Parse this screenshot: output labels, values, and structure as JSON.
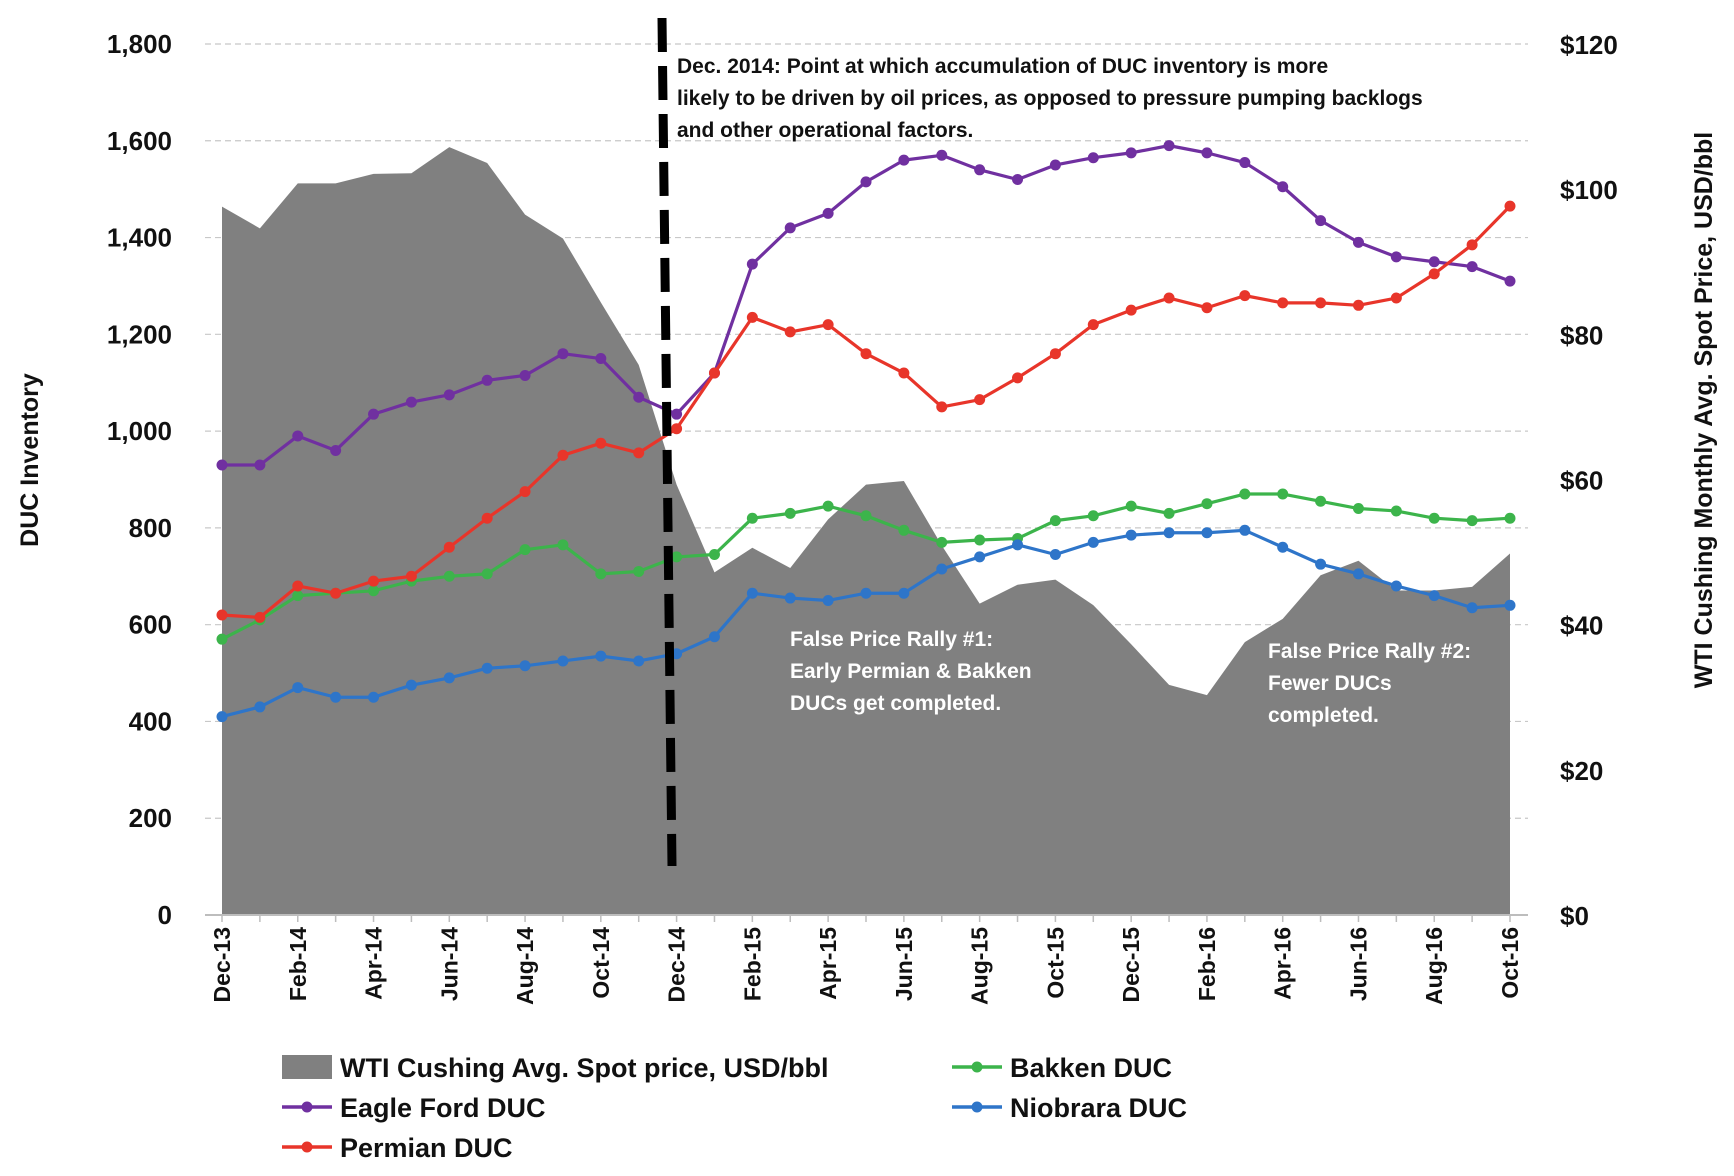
{
  "chart_data": {
    "type": "line",
    "x": [
      "Dec-13",
      "Jan-14",
      "Feb-14",
      "Mar-14",
      "Apr-14",
      "May-14",
      "Jun-14",
      "Jul-14",
      "Aug-14",
      "Sep-14",
      "Oct-14",
      "Nov-14",
      "Dec-14",
      "Jan-15",
      "Feb-15",
      "Mar-15",
      "Apr-15",
      "May-15",
      "Jun-15",
      "Jul-15",
      "Aug-15",
      "Sep-15",
      "Oct-15",
      "Nov-15",
      "Dec-15",
      "Jan-16",
      "Feb-16",
      "Mar-16",
      "Apr-16",
      "May-16",
      "Jun-16",
      "Jul-16",
      "Aug-16",
      "Sep-16",
      "Oct-16"
    ],
    "x_tick_labels": [
      "Dec-13",
      "Feb-14",
      "Apr-14",
      "Jun-14",
      "Aug-14",
      "Oct-14",
      "Dec-14",
      "Feb-15",
      "Apr-15",
      "Jun-15",
      "Aug-15",
      "Oct-15",
      "Dec-15",
      "Feb-16",
      "Apr-16",
      "Jun-16",
      "Aug-16",
      "Oct-16"
    ],
    "ylabel": "DUC Inventory",
    "ylim": [
      0,
      1800
    ],
    "y_ticks": [
      "0",
      "200",
      "400",
      "600",
      "800",
      "1,000",
      "1,200",
      "1,400",
      "1,600",
      "1,800"
    ],
    "y2label": "WTI Cushing Monthly Avg. Spot Price, USD/bbl",
    "y2lim": [
      0,
      120
    ],
    "y2_ticks": [
      "$0",
      "$20",
      "$40",
      "$60",
      "$80",
      "$100",
      "$120"
    ],
    "grid": true,
    "legend_position": "bottom",
    "area_series": {
      "name": "WTI Cushing Avg. Spot price, USD/bbl",
      "axis": "right",
      "color": "#808080",
      "values": [
        97.6,
        94.6,
        100.8,
        100.8,
        102.1,
        102.2,
        105.8,
        103.6,
        96.5,
        93.2,
        84.4,
        75.8,
        59.3,
        47.2,
        50.6,
        47.8,
        54.5,
        59.3,
        59.8,
        50.9,
        42.9,
        45.5,
        46.2,
        42.7,
        37.3,
        31.7,
        30.3,
        37.6,
        40.8,
        46.8,
        48.8,
        44.7,
        44.7,
        45.2,
        49.8
      ]
    },
    "series": [
      {
        "name": "Bakken DUC",
        "color": "#3cb44b",
        "values": [
          570,
          610,
          660,
          665,
          670,
          690,
          700,
          705,
          755,
          765,
          705,
          710,
          740,
          745,
          820,
          830,
          845,
          825,
          795,
          770,
          775,
          778,
          815,
          825,
          845,
          830,
          850,
          870,
          870,
          855,
          840,
          835,
          820,
          815,
          820
        ]
      },
      {
        "name": "Eagle Ford DUC",
        "color": "#7030a0",
        "values": [
          930,
          930,
          990,
          960,
          1035,
          1060,
          1075,
          1105,
          1115,
          1160,
          1150,
          1070,
          1035,
          1120,
          1345,
          1420,
          1450,
          1515,
          1560,
          1570,
          1540,
          1520,
          1550,
          1565,
          1575,
          1590,
          1575,
          1555,
          1505,
          1435,
          1390,
          1360,
          1350,
          1340,
          1310
        ]
      },
      {
        "name": "Niobrara DUC",
        "color": "#2e75c9",
        "values": [
          410,
          430,
          470,
          450,
          450,
          475,
          490,
          510,
          515,
          525,
          535,
          525,
          540,
          575,
          665,
          655,
          650,
          665,
          665,
          715,
          740,
          765,
          745,
          770,
          785,
          790,
          790,
          795,
          760,
          725,
          705,
          680,
          660,
          635,
          640
        ]
      },
      {
        "name": "Permian DUC",
        "color": "#e8352a",
        "values": [
          620,
          615,
          680,
          665,
          690,
          700,
          760,
          820,
          875,
          950,
          975,
          955,
          1005,
          1120,
          1235,
          1205,
          1220,
          1160,
          1120,
          1050,
          1065,
          1110,
          1160,
          1220,
          1250,
          1275,
          1255,
          1280,
          1265,
          1265,
          1260,
          1275,
          1325,
          1385,
          1465
        ]
      }
    ],
    "annotations": [
      {
        "id": "dec2014",
        "lines": [
          "Dec. 2014: Point at which accumulation of DUC inventory is more",
          "likely to be driven by oil prices, as opposed to pressure pumping backlogs",
          "and other operational factors."
        ]
      },
      {
        "id": "rally1",
        "lines": [
          "False Price Rally #1:",
          "Early Permian & Bakken",
          "DUCs get completed."
        ]
      },
      {
        "id": "rally2",
        "lines": [
          "False Price Rally #2:",
          "Fewer DUCs",
          "completed."
        ]
      }
    ],
    "legend": [
      {
        "label": "WTI Cushing Avg. Spot price, USD/bbl",
        "kind": "area",
        "color": "#808080"
      },
      {
        "label": "Bakken DUC",
        "kind": "line",
        "color": "#3cb44b"
      },
      {
        "label": "Eagle Ford DUC",
        "kind": "line",
        "color": "#7030a0"
      },
      {
        "label": "Niobrara DUC",
        "kind": "line",
        "color": "#2e75c9"
      },
      {
        "label": "Permian DUC",
        "kind": "line",
        "color": "#e8352a"
      }
    ]
  }
}
